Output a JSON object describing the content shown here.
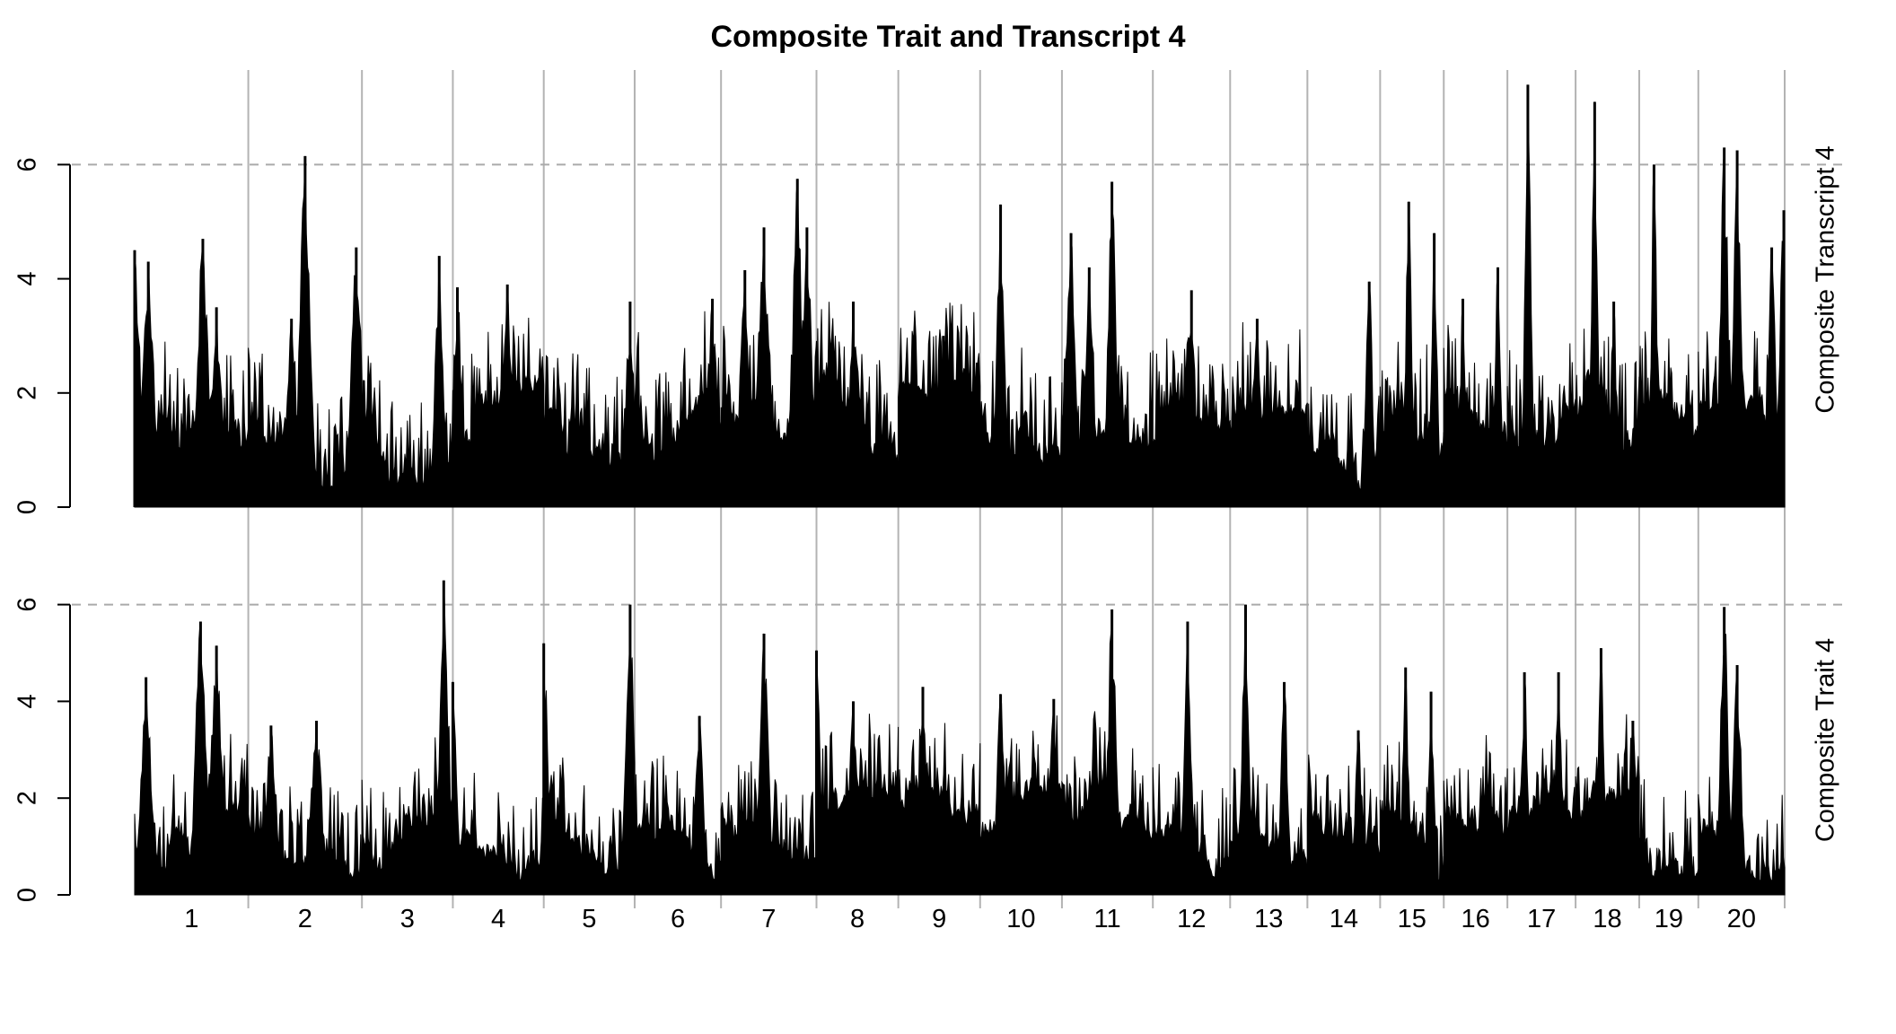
{
  "chart_data": {
    "type": "area",
    "title": "Composite Trait and Transcript 4",
    "xlabel": "",
    "x_categories": [
      "1",
      "2",
      "3",
      "4",
      "5",
      "6",
      "7",
      "8",
      "9",
      "10",
      "11",
      "12",
      "13",
      "14",
      "15",
      "16",
      "17",
      "18",
      "19",
      "20"
    ],
    "chromosome_widths": [
      1.25,
      1.25,
      1.0,
      1.0,
      1.0,
      0.95,
      1.05,
      0.9,
      0.9,
      0.9,
      1.0,
      0.85,
      0.85,
      0.8,
      0.7,
      0.7,
      0.75,
      0.7,
      0.65,
      0.95
    ],
    "threshold": 6,
    "panels": [
      {
        "ylabel": "Composite Transcript 4",
        "ylim": [
          0,
          7.5
        ],
        "yticks": [
          0,
          2,
          4,
          6
        ],
        "peaks": [
          {
            "chr": "1",
            "pos": 0.0,
            "lod": 4.5
          },
          {
            "chr": "1",
            "pos": 0.12,
            "lod": 4.3
          },
          {
            "chr": "1",
            "pos": 0.6,
            "lod": 4.7
          },
          {
            "chr": "1",
            "pos": 0.72,
            "lod": 3.5
          },
          {
            "chr": "2",
            "pos": 0.38,
            "lod": 3.3
          },
          {
            "chr": "2",
            "pos": 0.5,
            "lod": 6.15
          },
          {
            "chr": "2",
            "pos": 0.95,
            "lod": 4.55
          },
          {
            "chr": "3",
            "pos": 0.85,
            "lod": 4.4
          },
          {
            "chr": "4",
            "pos": 0.05,
            "lod": 3.85
          },
          {
            "chr": "4",
            "pos": 0.6,
            "lod": 3.9
          },
          {
            "chr": "5",
            "pos": 0.95,
            "lod": 3.6
          },
          {
            "chr": "6",
            "pos": 0.9,
            "lod": 3.65
          },
          {
            "chr": "7",
            "pos": 0.25,
            "lod": 4.15
          },
          {
            "chr": "7",
            "pos": 0.45,
            "lod": 4.9
          },
          {
            "chr": "7",
            "pos": 0.8,
            "lod": 5.75
          },
          {
            "chr": "7",
            "pos": 0.9,
            "lod": 4.9
          },
          {
            "chr": "8",
            "pos": 0.45,
            "lod": 3.6
          },
          {
            "chr": "9",
            "pos": 0.55,
            "lod": 3.0
          },
          {
            "chr": "10",
            "pos": 0.25,
            "lod": 5.3
          },
          {
            "chr": "11",
            "pos": 0.1,
            "lod": 4.8
          },
          {
            "chr": "11",
            "pos": 0.3,
            "lod": 4.2
          },
          {
            "chr": "11",
            "pos": 0.55,
            "lod": 5.7
          },
          {
            "chr": "12",
            "pos": 0.5,
            "lod": 3.8
          },
          {
            "chr": "13",
            "pos": 0.35,
            "lod": 3.3
          },
          {
            "chr": "14",
            "pos": 0.85,
            "lod": 3.95
          },
          {
            "chr": "15",
            "pos": 0.45,
            "lod": 5.35
          },
          {
            "chr": "15",
            "pos": 0.85,
            "lod": 4.8
          },
          {
            "chr": "16",
            "pos": 0.3,
            "lod": 3.65
          },
          {
            "chr": "16",
            "pos": 0.85,
            "lod": 4.2
          },
          {
            "chr": "17",
            "pos": 0.3,
            "lod": 7.4
          },
          {
            "chr": "18",
            "pos": 0.3,
            "lod": 7.1
          },
          {
            "chr": "18",
            "pos": 0.6,
            "lod": 3.6
          },
          {
            "chr": "19",
            "pos": 0.25,
            "lod": 6.0
          },
          {
            "chr": "20",
            "pos": 0.3,
            "lod": 6.3
          },
          {
            "chr": "20",
            "pos": 0.45,
            "lod": 6.25
          },
          {
            "chr": "20",
            "pos": 0.85,
            "lod": 4.55
          },
          {
            "chr": "20",
            "pos": 0.99,
            "lod": 5.2
          }
        ]
      },
      {
        "ylabel": "Composite Trait 4",
        "ylim": [
          0,
          6.5
        ],
        "yticks": [
          0,
          2,
          4,
          6
        ],
        "peaks": [
          {
            "chr": "1",
            "pos": 0.1,
            "lod": 4.5
          },
          {
            "chr": "1",
            "pos": 0.58,
            "lod": 5.65
          },
          {
            "chr": "1",
            "pos": 0.72,
            "lod": 5.15
          },
          {
            "chr": "2",
            "pos": 0.2,
            "lod": 3.5
          },
          {
            "chr": "2",
            "pos": 0.6,
            "lod": 3.6
          },
          {
            "chr": "3",
            "pos": 0.9,
            "lod": 6.5
          },
          {
            "chr": "4",
            "pos": 0.0,
            "lod": 4.4
          },
          {
            "chr": "5",
            "pos": 0.0,
            "lod": 5.2
          },
          {
            "chr": "5",
            "pos": 0.95,
            "lod": 6.0
          },
          {
            "chr": "6",
            "pos": 0.75,
            "lod": 3.7
          },
          {
            "chr": "7",
            "pos": 0.45,
            "lod": 5.4
          },
          {
            "chr": "8",
            "pos": 0.0,
            "lod": 5.05
          },
          {
            "chr": "8",
            "pos": 0.45,
            "lod": 4.0
          },
          {
            "chr": "9",
            "pos": 0.3,
            "lod": 4.3
          },
          {
            "chr": "10",
            "pos": 0.25,
            "lod": 4.15
          },
          {
            "chr": "10",
            "pos": 0.9,
            "lod": 4.05
          },
          {
            "chr": "11",
            "pos": 0.55,
            "lod": 5.9
          },
          {
            "chr": "12",
            "pos": 0.45,
            "lod": 5.65
          },
          {
            "chr": "13",
            "pos": 0.2,
            "lod": 6.0
          },
          {
            "chr": "13",
            "pos": 0.7,
            "lod": 4.4
          },
          {
            "chr": "14",
            "pos": 0.7,
            "lod": 3.4
          },
          {
            "chr": "15",
            "pos": 0.4,
            "lod": 4.7
          },
          {
            "chr": "15",
            "pos": 0.8,
            "lod": 4.2
          },
          {
            "chr": "17",
            "pos": 0.25,
            "lod": 4.6
          },
          {
            "chr": "17",
            "pos": 0.75,
            "lod": 4.6
          },
          {
            "chr": "18",
            "pos": 0.4,
            "lod": 5.1
          },
          {
            "chr": "18",
            "pos": 0.9,
            "lod": 3.6
          },
          {
            "chr": "20",
            "pos": 0.3,
            "lod": 5.95
          },
          {
            "chr": "20",
            "pos": 0.45,
            "lod": 4.75
          }
        ]
      }
    ]
  }
}
